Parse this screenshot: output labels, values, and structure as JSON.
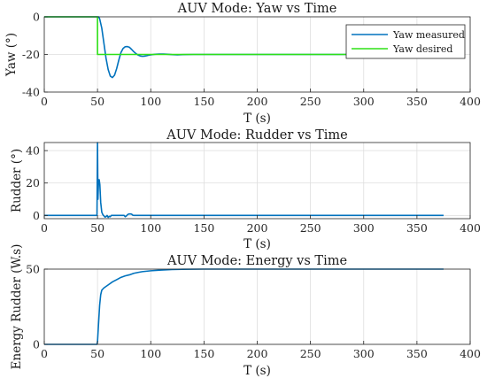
{
  "chart_data": [
    {
      "type": "line",
      "title": "AUV Mode: Yaw vs Time",
      "xlabel": "T (s)",
      "ylabel": "Yaw (°)",
      "xlim": [
        0,
        400
      ],
      "ylim": [
        -40,
        0
      ],
      "xticks": [
        "0",
        "50",
        "100",
        "150",
        "200",
        "250",
        "300",
        "350",
        "400"
      ],
      "yticks": [
        "-40",
        "-20",
        "0"
      ],
      "grid": true,
      "legend_position": "top-right",
      "series": [
        {
          "name": "Yaw measured",
          "color": "#0072BD",
          "x": [
            0,
            49.5,
            50,
            51,
            52,
            54,
            56,
            58,
            60,
            62,
            64,
            66,
            68,
            70,
            72,
            74,
            76,
            78,
            80,
            82,
            84,
            86,
            88,
            90,
            92,
            94,
            96,
            98,
            100,
            104,
            108,
            112,
            116,
            120,
            125,
            130,
            140,
            150,
            160,
            200,
            375
          ],
          "values": [
            0,
            0,
            0,
            0,
            -1,
            -6,
            -14,
            -22,
            -28,
            -31.5,
            -32.3,
            -31,
            -27.5,
            -23,
            -19,
            -16.8,
            -15.9,
            -15.8,
            -16.2,
            -17.3,
            -18.5,
            -19.5,
            -20.3,
            -20.8,
            -21,
            -20.9,
            -20.7,
            -20.4,
            -20.2,
            -19.9,
            -19.8,
            -19.8,
            -19.9,
            -20.1,
            -20.2,
            -20.1,
            -20,
            -20,
            -20,
            -20,
            -20
          ]
        },
        {
          "name": "Yaw desired",
          "color": "#2EE016",
          "x": [
            0,
            50,
            50,
            375
          ],
          "values": [
            0,
            0,
            -20,
            -20
          ]
        }
      ]
    },
    {
      "type": "line",
      "title": "AUV Mode: Rudder vs Time",
      "xlabel": "T (s)",
      "ylabel": "Rudder (°)",
      "xlim": [
        0,
        400
      ],
      "ylim": [
        -2,
        45
      ],
      "xticks": [
        "0",
        "50",
        "100",
        "150",
        "200",
        "250",
        "300",
        "350",
        "400"
      ],
      "yticks": [
        "0",
        "20",
        "40"
      ],
      "grid": true,
      "series": [
        {
          "color": "#0072BD",
          "x": [
            0,
            49.5,
            50,
            50.4,
            51,
            51.6,
            52.2,
            53,
            54,
            55,
            56,
            57,
            58,
            59,
            60,
            61,
            62,
            63,
            75,
            76,
            77,
            78,
            79,
            80,
            81,
            82,
            83,
            84,
            85,
            86,
            375
          ],
          "values": [
            0,
            0,
            45,
            10,
            22,
            22,
            19,
            8,
            2,
            0.5,
            -0.3,
            -1,
            -0.8,
            0,
            -1.2,
            -0.6,
            -0.8,
            0,
            0,
            -0.8,
            -0.4,
            0.3,
            0.8,
            0.9,
            0.9,
            0.8,
            0.2,
            0,
            0,
            0,
            0
          ]
        }
      ]
    },
    {
      "type": "line",
      "title": "AUV Mode: Energy vs Time",
      "xlabel": "T (s)",
      "ylabel": "Energy Rudder (W.s)",
      "xlim": [
        0,
        400
      ],
      "ylim": [
        0,
        50
      ],
      "xticks": [
        "0",
        "50",
        "100",
        "150",
        "200",
        "250",
        "300",
        "350",
        "400"
      ],
      "yticks": [
        "0",
        "50"
      ],
      "grid": true,
      "series": [
        {
          "color": "#0072BD",
          "x": [
            0,
            49.5,
            50,
            51,
            52,
            53,
            54,
            56,
            60,
            64,
            68,
            72,
            76,
            80,
            84,
            88,
            92,
            96,
            100,
            110,
            120,
            130,
            150,
            375
          ],
          "values": [
            0,
            0,
            2,
            14,
            26,
            33,
            36,
            37.5,
            39.5,
            41.5,
            43,
            44.5,
            45.5,
            46.2,
            47.2,
            47.8,
            48.3,
            48.6,
            48.9,
            49.4,
            49.7,
            49.9,
            50,
            50
          ]
        }
      ]
    }
  ]
}
